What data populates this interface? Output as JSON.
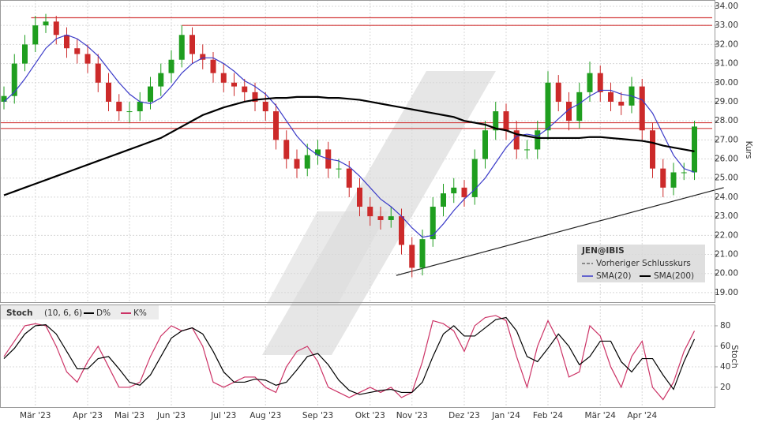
{
  "chart_data": [
    {
      "type": "candlestick",
      "title": "JEN@IBIS",
      "y_label": "Kurs",
      "legend_extra": "Vorheriger Schlusskurs",
      "categories": [
        null,
        null,
        null,
        "Mär '23",
        null,
        null,
        null,
        null,
        "Apr '23",
        null,
        null,
        null,
        "Mai '23",
        null,
        null,
        null,
        "Jun '23",
        null,
        null,
        null,
        null,
        "Jul '23",
        null,
        null,
        null,
        "Aug '23",
        null,
        null,
        null,
        null,
        "Sep '23",
        null,
        null,
        null,
        null,
        "Okt '23",
        null,
        null,
        null,
        "Nov '23",
        null,
        null,
        null,
        null,
        "Dez '23",
        null,
        null,
        null,
        "Jan '24",
        null,
        null,
        null,
        "Feb '24",
        null,
        null,
        null,
        null,
        "Mär '24",
        null,
        null,
        null,
        "Apr '24",
        null,
        null,
        null,
        null,
        null
      ],
      "open": [
        29.0,
        29.3,
        31.0,
        32.0,
        33.0,
        33.2,
        32.5,
        31.8,
        31.5,
        31.0,
        30.0,
        29.0,
        28.5,
        28.5,
        29.0,
        29.8,
        30.5,
        31.2,
        32.5,
        31.5,
        31.2,
        30.5,
        30.0,
        29.8,
        29.5,
        29.0,
        28.5,
        27.0,
        26.0,
        25.5,
        26.2,
        26.5,
        25.5,
        25.5,
        24.5,
        23.5,
        23.0,
        22.8,
        23.0,
        21.5,
        20.3,
        21.8,
        23.5,
        24.2,
        24.5,
        24.0,
        26.0,
        27.5,
        28.5,
        27.5,
        26.5,
        26.5,
        27.5,
        30.0,
        29.0,
        28.0,
        29.5,
        30.5,
        29.5,
        29.0,
        28.8,
        29.8,
        27.5,
        25.5,
        24.5,
        25.3,
        25.3
      ],
      "high": [
        29.8,
        31.5,
        32.5,
        33.5,
        33.6,
        33.5,
        32.9,
        32.3,
        32.0,
        31.5,
        30.5,
        29.4,
        29.0,
        29.5,
        30.3,
        31.0,
        31.7,
        33.0,
        32.9,
        32.0,
        31.6,
        31.0,
        30.5,
        30.2,
        30.0,
        29.5,
        28.9,
        27.5,
        26.5,
        26.8,
        27.0,
        26.9,
        26.0,
        25.9,
        25.0,
        24.0,
        23.5,
        23.5,
        23.4,
        21.9,
        22.3,
        24.0,
        24.7,
        25.0,
        24.9,
        26.5,
        28.0,
        29.0,
        28.9,
        28.0,
        27.0,
        28.0,
        30.6,
        30.4,
        29.5,
        30.0,
        31.1,
        30.9,
        30.0,
        29.5,
        30.3,
        30.2,
        27.9,
        26.0,
        25.8,
        25.8,
        28.0
      ],
      "low": [
        28.6,
        28.9,
        30.6,
        31.6,
        32.6,
        32.0,
        31.3,
        31.0,
        30.5,
        29.5,
        28.5,
        28.0,
        27.9,
        28.0,
        28.6,
        29.3,
        30.0,
        30.8,
        31.0,
        30.7,
        30.0,
        29.5,
        29.3,
        29.0,
        28.5,
        28.0,
        26.5,
        25.5,
        25.0,
        25.1,
        25.7,
        25.0,
        25.0,
        24.0,
        23.0,
        22.5,
        22.3,
        22.4,
        21.0,
        19.8,
        19.9,
        21.4,
        23.0,
        23.7,
        23.5,
        23.6,
        25.5,
        27.0,
        27.0,
        26.0,
        26.0,
        26.0,
        27.0,
        28.5,
        27.5,
        27.6,
        29.0,
        29.0,
        28.5,
        28.3,
        28.4,
        27.0,
        25.0,
        24.0,
        24.1,
        24.9,
        24.9
      ],
      "close": [
        29.3,
        31.0,
        32.0,
        33.0,
        33.2,
        32.5,
        31.8,
        31.5,
        31.0,
        30.0,
        29.0,
        28.5,
        28.5,
        29.0,
        29.8,
        30.5,
        31.2,
        32.5,
        31.5,
        31.2,
        30.5,
        30.0,
        29.8,
        29.5,
        29.0,
        28.5,
        27.0,
        26.0,
        25.5,
        26.2,
        26.5,
        25.5,
        25.5,
        24.5,
        23.5,
        23.0,
        22.8,
        23.0,
        21.5,
        20.3,
        21.8,
        23.5,
        24.2,
        24.5,
        24.0,
        26.0,
        27.5,
        28.5,
        27.5,
        26.5,
        26.5,
        27.5,
        30.0,
        29.0,
        28.0,
        29.5,
        30.5,
        29.5,
        29.0,
        28.8,
        29.8,
        27.5,
        25.5,
        24.5,
        25.3,
        25.3,
        27.7
      ],
      "up_color": "#1f9e1f",
      "down_color": "#cc2a2a",
      "series": [
        {
          "name": "SMA(20)",
          "color": "#3a3ac8",
          "values": [
            29.0,
            29.5,
            30.2,
            31.0,
            31.8,
            32.3,
            32.5,
            32.3,
            31.9,
            31.4,
            30.7,
            30.0,
            29.4,
            29.0,
            28.9,
            29.2,
            29.8,
            30.5,
            31.0,
            31.3,
            31.3,
            31.0,
            30.6,
            30.1,
            29.8,
            29.4,
            28.8,
            28.0,
            27.2,
            26.6,
            26.2,
            26.0,
            25.9,
            25.6,
            25.1,
            24.5,
            23.9,
            23.5,
            23.0,
            22.4,
            21.9,
            22.0,
            22.6,
            23.3,
            23.9,
            24.4,
            25.0,
            25.8,
            26.6,
            27.2,
            27.3,
            27.2,
            27.6,
            28.1,
            28.6,
            28.9,
            29.3,
            29.6,
            29.6,
            29.4,
            29.3,
            29.1,
            28.4,
            27.3,
            26.2,
            25.5,
            25.3
          ]
        },
        {
          "name": "SMA(200)",
          "color": "#000000",
          "values": [
            24.1,
            24.3,
            24.5,
            24.7,
            24.9,
            25.1,
            25.3,
            25.5,
            25.7,
            25.9,
            26.1,
            26.3,
            26.5,
            26.7,
            26.9,
            27.1,
            27.4,
            27.7,
            28.0,
            28.3,
            28.5,
            28.7,
            28.85,
            29.0,
            29.1,
            29.15,
            29.2,
            29.2,
            29.25,
            29.25,
            29.25,
            29.2,
            29.2,
            29.15,
            29.1,
            29.0,
            28.9,
            28.8,
            28.7,
            28.6,
            28.5,
            28.4,
            28.3,
            28.2,
            28.0,
            27.9,
            27.8,
            27.6,
            27.5,
            27.3,
            27.2,
            27.1,
            27.1,
            27.1,
            27.1,
            27.1,
            27.15,
            27.15,
            27.1,
            27.05,
            27.0,
            26.95,
            26.85,
            26.7,
            26.6,
            26.5,
            26.4
          ]
        }
      ],
      "hlines": [
        {
          "value": 33.4,
          "from": 2.6,
          "color": "#d23a3a"
        },
        {
          "value": 33.0,
          "from": 17,
          "color": "#d23a3a"
        },
        {
          "value": 27.9,
          "from": 0,
          "color": "#d23a3a"
        },
        {
          "value": 27.6,
          "from": 0,
          "color": "#d23a3a"
        }
      ],
      "trendline": {
        "x": [
          37.5,
          68.8
        ],
        "y": [
          19.9,
          24.5
        ],
        "color": "#222222"
      },
      "ylim": [
        18.5,
        34.33
      ],
      "yticks": [
        {
          "value": 19,
          "label": "19.00"
        },
        {
          "value": 20,
          "label": "20.00"
        },
        {
          "value": 21,
          "label": "21.00"
        },
        {
          "value": 22,
          "label": "22.00"
        },
        {
          "value": 23,
          "label": "23.00"
        },
        {
          "value": 24,
          "label": "24.00"
        },
        {
          "value": 25,
          "label": "25.00"
        },
        {
          "value": 26,
          "label": "26.00"
        },
        {
          "value": 27,
          "label": "27.00"
        },
        {
          "value": 28,
          "label": "28.00"
        },
        {
          "value": 29,
          "label": "29.00"
        },
        {
          "value": 30,
          "label": "30.00"
        },
        {
          "value": 31,
          "label": "31.00"
        },
        {
          "value": 32,
          "label": "32.00"
        },
        {
          "value": 33,
          "label": "33.00"
        },
        {
          "value": 34,
          "label": "34.00"
        }
      ],
      "grid": true
    },
    {
      "type": "line",
      "title": "Stoch",
      "subtitle": "(10, 6, 6)",
      "y_label": "Stoch",
      "series": [
        {
          "name": "D%",
          "color": "#000000",
          "values": [
            48,
            58,
            72,
            80,
            81,
            72,
            55,
            38,
            38,
            48,
            50,
            38,
            25,
            22,
            32,
            50,
            68,
            75,
            78,
            72,
            55,
            35,
            25,
            25,
            28,
            27,
            22,
            25,
            37,
            50,
            53,
            42,
            27,
            17,
            13,
            15,
            17,
            18,
            15,
            15,
            25,
            50,
            72,
            80,
            70,
            70,
            78,
            86,
            88,
            75,
            50,
            45,
            58,
            72,
            60,
            42,
            50,
            65,
            65,
            45,
            35,
            48,
            48,
            32,
            18,
            45,
            67
          ]
        },
        {
          "name": "K%",
          "color": "#cc3366",
          "values": [
            50,
            65,
            80,
            82,
            80,
            60,
            35,
            25,
            45,
            60,
            40,
            20,
            20,
            25,
            50,
            70,
            80,
            75,
            78,
            60,
            25,
            20,
            25,
            30,
            30,
            20,
            15,
            40,
            55,
            60,
            45,
            20,
            15,
            10,
            15,
            20,
            15,
            20,
            10,
            15,
            45,
            85,
            82,
            75,
            55,
            80,
            88,
            90,
            85,
            50,
            20,
            60,
            85,
            65,
            30,
            35,
            80,
            70,
            40,
            20,
            50,
            65,
            20,
            8,
            25,
            55,
            75
          ]
        }
      ],
      "ylim": [
        1.5,
        99.2
      ],
      "yticks": [
        20,
        40,
        60,
        80
      ],
      "grid": true
    }
  ]
}
